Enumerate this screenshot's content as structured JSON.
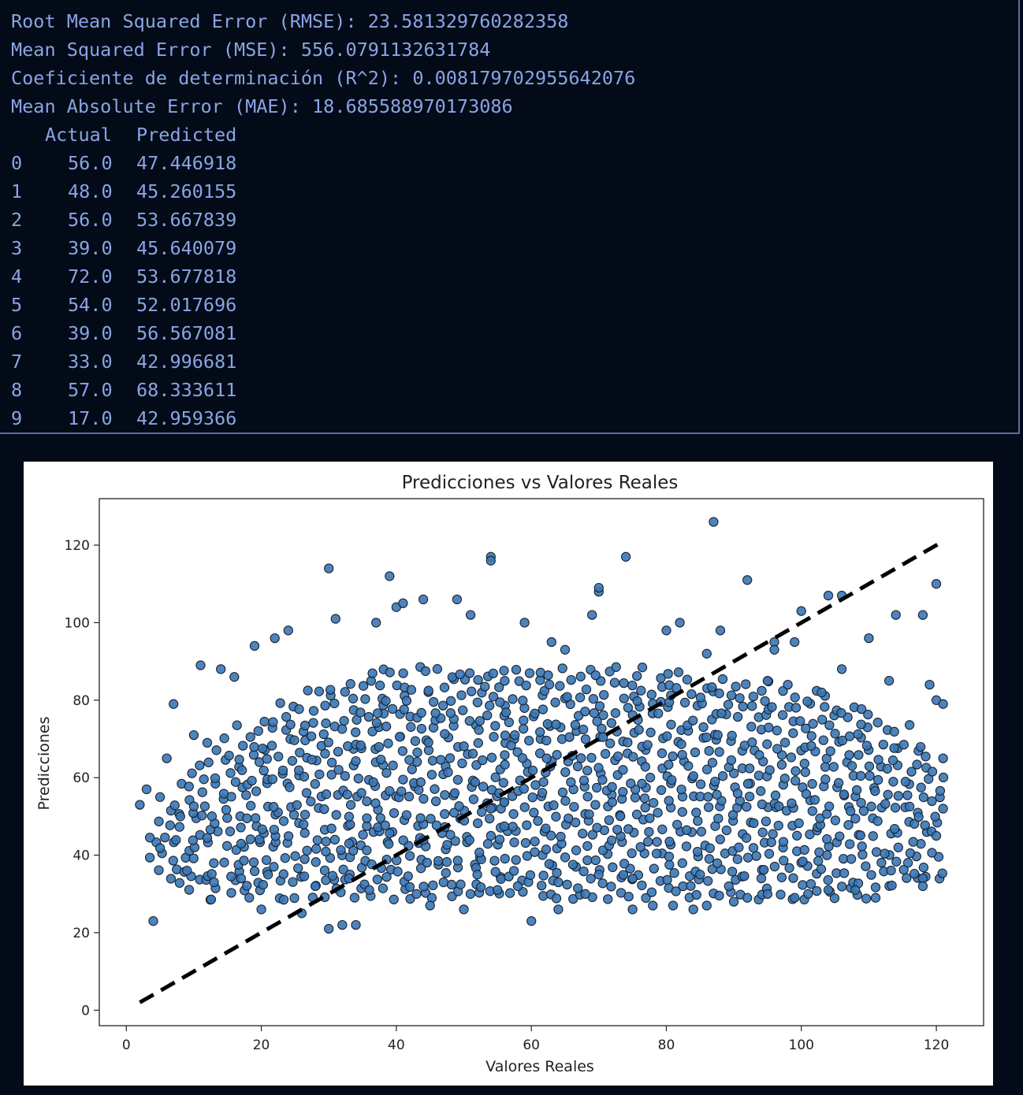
{
  "terminal": {
    "metrics": [
      "Root Mean Squared Error (RMSE): 23.581329760282358",
      "Mean Squared Error (MSE): 556.0791132631784",
      "Coeficiente de determinación (R^2): 0.008179702955642076",
      "Mean Absolute Error (MAE): 18.685588970173086"
    ],
    "table": {
      "headers": [
        "Actual",
        "Predicted"
      ],
      "rows": [
        {
          "index": "0",
          "actual": "56.0",
          "predicted": "47.446918"
        },
        {
          "index": "1",
          "actual": "48.0",
          "predicted": "45.260155"
        },
        {
          "index": "2",
          "actual": "56.0",
          "predicted": "53.667839"
        },
        {
          "index": "3",
          "actual": "39.0",
          "predicted": "45.640079"
        },
        {
          "index": "4",
          "actual": "72.0",
          "predicted": "53.677818"
        },
        {
          "index": "5",
          "actual": "54.0",
          "predicted": "52.017696"
        },
        {
          "index": "6",
          "actual": "39.0",
          "predicted": "56.567081"
        },
        {
          "index": "7",
          "actual": "33.0",
          "predicted": "42.996681"
        },
        {
          "index": "8",
          "actual": "57.0",
          "predicted": "68.333611"
        },
        {
          "index": "9",
          "actual": "17.0",
          "predicted": "42.959366"
        }
      ]
    }
  },
  "chart_data": {
    "type": "scatter",
    "title": "Predicciones vs Valores Reales",
    "xlabel": "Valores Reales",
    "ylabel": "Predicciones",
    "xlim": [
      -4,
      127
    ],
    "ylim": [
      -4,
      132
    ],
    "xticks": [
      0,
      20,
      40,
      60,
      80,
      100,
      120
    ],
    "yticks": [
      0,
      20,
      40,
      60,
      80,
      100,
      120
    ],
    "grid": false,
    "reference_line": {
      "x": [
        2,
        121
      ],
      "y": [
        2,
        121
      ],
      "style": "dashed",
      "color": "#000000"
    },
    "marker": {
      "fill": "#3a77b5",
      "edge": "#1a2535"
    },
    "series": [
      {
        "x": [
          56,
          48,
          56,
          39,
          72,
          54,
          39,
          33,
          57,
          17,
          2,
          4,
          6,
          7,
          11,
          14,
          16,
          19,
          22,
          24,
          30,
          31,
          37,
          39,
          40,
          41,
          44,
          49,
          51,
          54,
          54,
          59,
          63,
          65,
          69,
          70,
          70,
          74,
          80,
          82,
          87,
          88,
          92,
          96,
          100,
          104,
          106,
          110,
          114,
          118,
          120,
          120,
          121,
          86,
          96,
          99,
          64,
          60,
          50,
          45,
          30,
          32,
          34,
          20,
          26,
          75,
          78,
          92,
          108,
          118,
          111,
          118,
          81,
          84,
          86,
          90,
          95,
          99,
          101,
          104,
          3,
          5,
          8,
          10,
          12,
          95,
          98,
          103,
          106,
          113,
          119,
          121,
          120,
          121,
          85,
          75,
          70,
          68,
          64,
          58,
          55,
          52,
          47,
          43,
          36,
          33,
          28,
          21,
          17,
          13,
          9
        ],
        "y": [
          47.446918,
          45.260155,
          53.667839,
          45.640079,
          53.677818,
          52.017696,
          56.567081,
          42.996681,
          68.333611,
          42.959366,
          53,
          23,
          65,
          79,
          89,
          88,
          86,
          94,
          96,
          98,
          114,
          101,
          100,
          112,
          104,
          105,
          106,
          106,
          102,
          117,
          116,
          100,
          95,
          93,
          102,
          108,
          109,
          117,
          98,
          100,
          126,
          98,
          111,
          95,
          103,
          107,
          107,
          96,
          102,
          102,
          110,
          80,
          65,
          92,
          93,
          95,
          26,
          23,
          26,
          27,
          21,
          22,
          22,
          26,
          25,
          26,
          27,
          29,
          31,
          34,
          29,
          32,
          27,
          26,
          27,
          28,
          30,
          29,
          30,
          31,
          57,
          55,
          50,
          71,
          69,
          85,
          84,
          82,
          88,
          85,
          84,
          79,
          45,
          52,
          35,
          34,
          35,
          30,
          33,
          32,
          31,
          35,
          33,
          30,
          31,
          34,
          32,
          35,
          34,
          33,
          36
        ]
      }
    ],
    "cloud_rows": [
      {
        "y": 30,
        "from": 10,
        "to": 112
      },
      {
        "y": 33,
        "from": 7,
        "to": 121
      },
      {
        "y": 36,
        "from": 5,
        "to": 121
      },
      {
        "y": 39,
        "from": 4,
        "to": 121
      },
      {
        "y": 42,
        "from": 4,
        "to": 121
      },
      {
        "y": 45,
        "from": 4,
        "to": 121
      },
      {
        "y": 48,
        "from": 5,
        "to": 121
      },
      {
        "y": 51,
        "from": 6,
        "to": 121
      },
      {
        "y": 54,
        "from": 7,
        "to": 121
      },
      {
        "y": 57,
        "from": 8,
        "to": 121
      },
      {
        "y": 60,
        "from": 10,
        "to": 121
      },
      {
        "y": 63,
        "from": 11,
        "to": 121
      },
      {
        "y": 66,
        "from": 13,
        "to": 119
      },
      {
        "y": 69,
        "from": 15,
        "to": 118
      },
      {
        "y": 72,
        "from": 17,
        "to": 117
      },
      {
        "y": 75,
        "from": 20,
        "to": 113
      },
      {
        "y": 78,
        "from": 23,
        "to": 110
      },
      {
        "y": 81,
        "from": 27,
        "to": 105
      },
      {
        "y": 84,
        "from": 31,
        "to": 96
      },
      {
        "y": 87,
        "from": 36,
        "to": 82
      }
    ],
    "cloud_step": 1.7
  }
}
